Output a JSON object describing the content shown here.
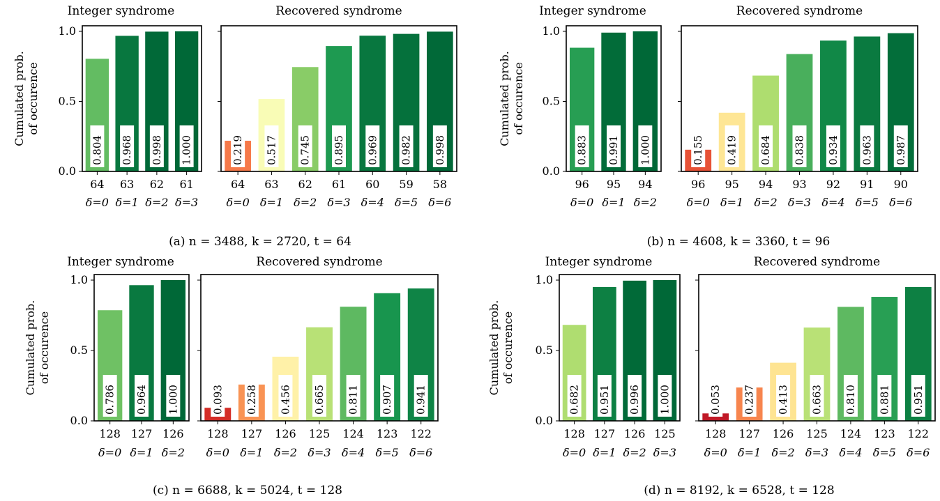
{
  "chart_data": [
    {
      "type": "bar",
      "caption": "(a) n = 3488, k = 2720, t = 64",
      "ylabel": "Cumulated prob.\nof occurence",
      "ylim": [
        0,
        1.0
      ],
      "yticks": [
        "0.0",
        "0.5",
        "1.0"
      ],
      "panels": [
        {
          "title": "Integer syndrome",
          "categories": [
            "64",
            "63",
            "62",
            "61"
          ],
          "deltas": [
            "δ=0",
            "δ=1",
            "δ=2",
            "δ=3"
          ],
          "values": [
            0.804,
            0.968,
            0.998,
            1.0
          ],
          "labels": [
            "0.804",
            "0.968",
            "0.998",
            "1.000"
          ]
        },
        {
          "title": "Recovered syndrome",
          "categories": [
            "64",
            "63",
            "62",
            "61",
            "60",
            "59",
            "58"
          ],
          "deltas": [
            "δ=0",
            "δ=1",
            "δ=2",
            "δ=3",
            "δ=4",
            "δ=5",
            "δ=6"
          ],
          "values": [
            0.219,
            0.517,
            0.745,
            0.895,
            0.969,
            0.982,
            0.998
          ],
          "labels": [
            "0.219",
            "0.517",
            "0.745",
            "0.895",
            "0.969",
            "0.982",
            "0.998"
          ]
        }
      ]
    },
    {
      "type": "bar",
      "caption": "(b) n = 4608, k = 3360, t = 96",
      "ylabel": "Cumulated prob.\nof occurence",
      "ylim": [
        0,
        1.0
      ],
      "yticks": [
        "0.0",
        "0.5",
        "1.0"
      ],
      "panels": [
        {
          "title": "Integer syndrome",
          "categories": [
            "96",
            "95",
            "94"
          ],
          "deltas": [
            "δ=0",
            "δ=1",
            "δ=2"
          ],
          "values": [
            0.883,
            0.991,
            1.0
          ],
          "labels": [
            "0.883",
            "0.991",
            "1.000"
          ]
        },
        {
          "title": "Recovered syndrome",
          "categories": [
            "96",
            "95",
            "94",
            "93",
            "92",
            "91",
            "90"
          ],
          "deltas": [
            "δ=0",
            "δ=1",
            "δ=2",
            "δ=3",
            "δ=4",
            "δ=5",
            "δ=6"
          ],
          "values": [
            0.155,
            0.419,
            0.684,
            0.838,
            0.934,
            0.963,
            0.987
          ],
          "labels": [
            "0.155",
            "0.419",
            "0.684",
            "0.838",
            "0.934",
            "0.963",
            "0.987"
          ]
        }
      ]
    },
    {
      "type": "bar",
      "caption": "(c) n = 6688, k = 5024, t = 128",
      "ylabel": "Cumulated prob.\nof occurence",
      "ylim": [
        0,
        1.0
      ],
      "yticks": [
        "0.0",
        "0.5",
        "1.0"
      ],
      "panels": [
        {
          "title": "Integer syndrome",
          "categories": [
            "128",
            "127",
            "126"
          ],
          "deltas": [
            "δ=0",
            "δ=1",
            "δ=2"
          ],
          "values": [
            0.786,
            0.964,
            1.0
          ],
          "labels": [
            "0.786",
            "0.964",
            "1.000"
          ]
        },
        {
          "title": "Recovered syndrome",
          "categories": [
            "128",
            "127",
            "126",
            "125",
            "124",
            "123",
            "122"
          ],
          "deltas": [
            "δ=0",
            "δ=1",
            "δ=2",
            "δ=3",
            "δ=4",
            "δ=5",
            "δ=6"
          ],
          "values": [
            0.093,
            0.258,
            0.456,
            0.665,
            0.811,
            0.907,
            0.941
          ],
          "labels": [
            "0.093",
            "0.258",
            "0.456",
            "0.665",
            "0.811",
            "0.907",
            "0.941"
          ]
        }
      ]
    },
    {
      "type": "bar",
      "caption": "(d) n = 8192, k = 6528, t = 128",
      "ylabel": "Cumulated prob.\nof occurence",
      "ylim": [
        0,
        1.0
      ],
      "yticks": [
        "0.0",
        "0.5",
        "1.0"
      ],
      "panels": [
        {
          "title": "Integer syndrome",
          "categories": [
            "128",
            "127",
            "126",
            "125"
          ],
          "deltas": [
            "δ=0",
            "δ=1",
            "δ=2",
            "δ=3"
          ],
          "values": [
            0.682,
            0.951,
            0.996,
            1.0
          ],
          "labels": [
            "0.682",
            "0.951",
            "0.996",
            "1.000"
          ]
        },
        {
          "title": "Recovered syndrome",
          "categories": [
            "128",
            "127",
            "126",
            "125",
            "124",
            "123",
            "122"
          ],
          "deltas": [
            "δ=0",
            "δ=1",
            "δ=2",
            "δ=3",
            "δ=4",
            "δ=5",
            "δ=6"
          ],
          "values": [
            0.053,
            0.237,
            0.413,
            0.663,
            0.81,
            0.881,
            0.951
          ],
          "labels": [
            "0.053",
            "0.237",
            "0.413",
            "0.663",
            "0.810",
            "0.881",
            "0.951"
          ]
        }
      ]
    }
  ]
}
